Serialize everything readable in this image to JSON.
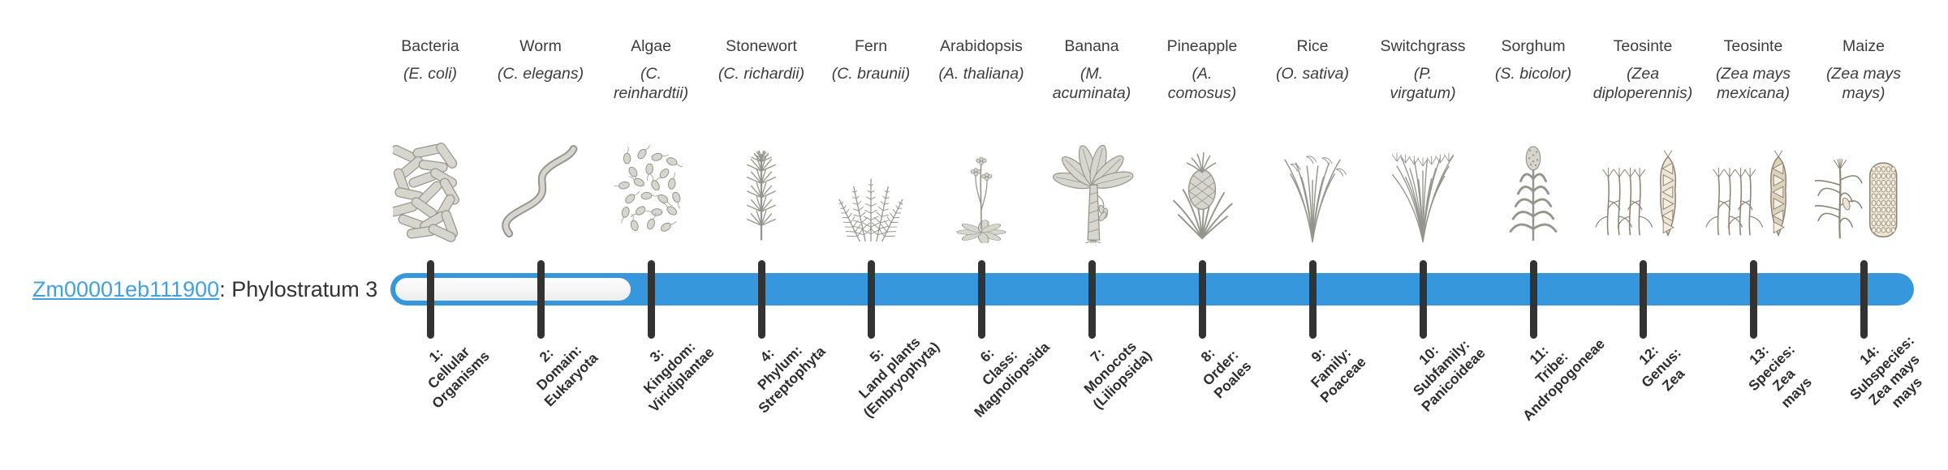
{
  "gene": {
    "id": "Zm00001eb111900",
    "suffix": ": Phylostratum 3",
    "stratum": 3
  },
  "bar": {
    "total_strata": 14,
    "filled_from_stratum": 3
  },
  "colors": {
    "bar": "#3797DC",
    "link": "#449FDD",
    "tick": "#333333",
    "heading": "#3D3D3D",
    "stage_text": "#2E2E2E"
  },
  "strata": [
    {
      "n": 1,
      "common": "Bacteria",
      "sci": "(E. coli)",
      "icon": "bacteria-icon",
      "stage": "1:\nCellular\nOrganisms"
    },
    {
      "n": 2,
      "common": "Worm",
      "sci": "(C. elegans)",
      "icon": "worm-icon",
      "stage": "2:\nDomain:\nEukaryota"
    },
    {
      "n": 3,
      "common": "Algae",
      "sci": "(C.\nreinhardtii)",
      "icon": "algae-icon",
      "stage": "3:\nKingdom:\nViridiplantae"
    },
    {
      "n": 4,
      "common": "Stonewort",
      "sci": "(C. richardii)",
      "icon": "stonewort-icon",
      "stage": "4:\nPhylum:\nStreptophyta"
    },
    {
      "n": 5,
      "common": "Fern",
      "sci": "(C. braunii)",
      "icon": "fern-icon",
      "stage": "5:\nLand plants\n(Embryophyta)"
    },
    {
      "n": 6,
      "common": "Arabidopsis",
      "sci": "(A. thaliana)",
      "icon": "arabidopsis-icon",
      "stage": "6:\nClass:\nMagnoliopsida"
    },
    {
      "n": 7,
      "common": "Banana",
      "sci": "(M.\nacuminata)",
      "icon": "banana-icon",
      "stage": "7:\nMonocots\n(Liliopsida)"
    },
    {
      "n": 8,
      "common": "Pineapple",
      "sci": "(A.\ncomosus)",
      "icon": "pineapple-icon",
      "stage": "8:\nOrder:\nPoales"
    },
    {
      "n": 9,
      "common": "Rice",
      "sci": "(O. sativa)",
      "icon": "rice-icon",
      "stage": "9:\nFamily:\nPoaceae"
    },
    {
      "n": 10,
      "common": "Switchgrass",
      "sci": "(P.\nvirgatum)",
      "icon": "switchgrass-icon",
      "stage": "10:\nSubfamily:\nPanicoideae"
    },
    {
      "n": 11,
      "common": "Sorghum",
      "sci": "(S. bicolor)",
      "icon": "sorghum-icon",
      "stage": "11:\nTribe:\nAndropogoneae"
    },
    {
      "n": 12,
      "common": "Teosinte",
      "sci": "(Zea\ndiploperennis)",
      "icon": "teosinte-diplo-icon",
      "stage": "12:\nGenus:\nZea"
    },
    {
      "n": 13,
      "common": "Teosinte",
      "sci": "(Zea mays\nmexicana)",
      "icon": "teosinte-mexicana-icon",
      "stage": "13:\nSpecies:\nZea\nmays"
    },
    {
      "n": 14,
      "common": "Maize",
      "sci": "(Zea mays\nmays)",
      "icon": "maize-icon",
      "stage": "14:\nSubspecies:\nZea mays\nmays"
    }
  ]
}
